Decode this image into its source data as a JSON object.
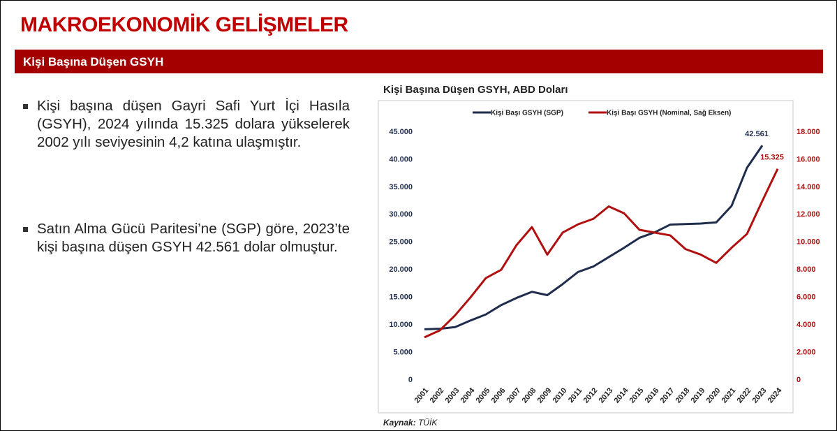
{
  "header": {
    "title": "MAKROEKONOMİK GELİŞMELER",
    "section": "Kişi Başına Düşen GSYH"
  },
  "bullets": [
    "Kişi başına düşen Gayri Safi Yurt İçi Hasıla (GSYH), 2024 yılında 15.325 dolara yükselerek 2002 yılı seviyesinin 4,2 katına ulaşmıştır.",
    "Satın Alma Gücü Paritesi’ne (SGP) göre, 2023’te kişi başına düşen GSYH 42.561 dolar olmuştur."
  ],
  "source": {
    "label": "Kaynak:",
    "text": "TÜİK"
  },
  "chart_data": {
    "type": "line",
    "title": "Kişi Başına Düşen GSYH, ABD Doları",
    "categories": [
      "2001",
      "2002",
      "2003",
      "2004",
      "2005",
      "2006",
      "2007",
      "2008",
      "2009",
      "2010",
      "2011",
      "2012",
      "2013",
      "2014",
      "2015",
      "2016",
      "2017",
      "2018",
      "2019",
      "2020",
      "2021",
      "2022",
      "2023",
      "2024"
    ],
    "series": [
      {
        "name": "Kişi Başı GSYH (SGP)",
        "color": "#1f2d4d",
        "axis": "y",
        "values": [
          9200,
          9300,
          9600,
          10800,
          11900,
          13600,
          14900,
          16000,
          15400,
          17400,
          19600,
          20600,
          22300,
          24000,
          25800,
          26800,
          28200,
          28300,
          28400,
          28600,
          31600,
          38500,
          42561,
          null
        ],
        "value_labels": [
          null,
          null,
          null,
          null,
          null,
          null,
          null,
          null,
          null,
          null,
          null,
          null,
          null,
          null,
          null,
          null,
          null,
          null,
          null,
          null,
          null,
          null,
          "42.561",
          null
        ]
      },
      {
        "name": "Kişi Başı GSYH (Nominal, Sağ Eksen)",
        "color": "#b01010",
        "axis": "y2",
        "values": [
          3100,
          3600,
          4700,
          6000,
          7400,
          8000,
          9800,
          11100,
          9100,
          10700,
          11300,
          11700,
          12600,
          12100,
          10900,
          10700,
          10500,
          9500,
          9100,
          8500,
          9600,
          10600,
          13000,
          15325
        ],
        "value_labels": [
          null,
          null,
          null,
          null,
          null,
          null,
          null,
          null,
          null,
          null,
          null,
          null,
          null,
          null,
          null,
          null,
          null,
          null,
          null,
          null,
          null,
          null,
          null,
          "15.325"
        ]
      }
    ],
    "ylim": [
      0,
      45000
    ],
    "yticks": [
      0,
      {
        "value": 5000,
        "label": "5.000"
      },
      {
        "value": 10000,
        "label": "10.000"
      },
      {
        "value": 15000,
        "label": "15.000"
      },
      {
        "value": 20000,
        "label": "20.000"
      },
      {
        "value": 25000,
        "label": "25.000"
      },
      {
        "value": 30000,
        "label": "30.000"
      },
      {
        "value": 35000,
        "label": "35.000"
      },
      {
        "value": 40000,
        "label": "40.000"
      },
      {
        "value": 45000,
        "label": "45.000"
      }
    ],
    "y2lim": [
      0,
      18000
    ],
    "y2ticks": [
      0,
      {
        "value": 2000,
        "label": "2.000"
      },
      {
        "value": 4000,
        "label": "4.000"
      },
      {
        "value": 6000,
        "label": "6.000"
      },
      {
        "value": 8000,
        "label": "8.000"
      },
      {
        "value": 10000,
        "label": "10.000"
      },
      {
        "value": 12000,
        "label": "12.000"
      },
      {
        "value": 14000,
        "label": "14.000"
      },
      {
        "value": 16000,
        "label": "16.000"
      },
      {
        "value": 18000,
        "label": "18.000"
      }
    ],
    "grid": false,
    "legend": "top"
  }
}
